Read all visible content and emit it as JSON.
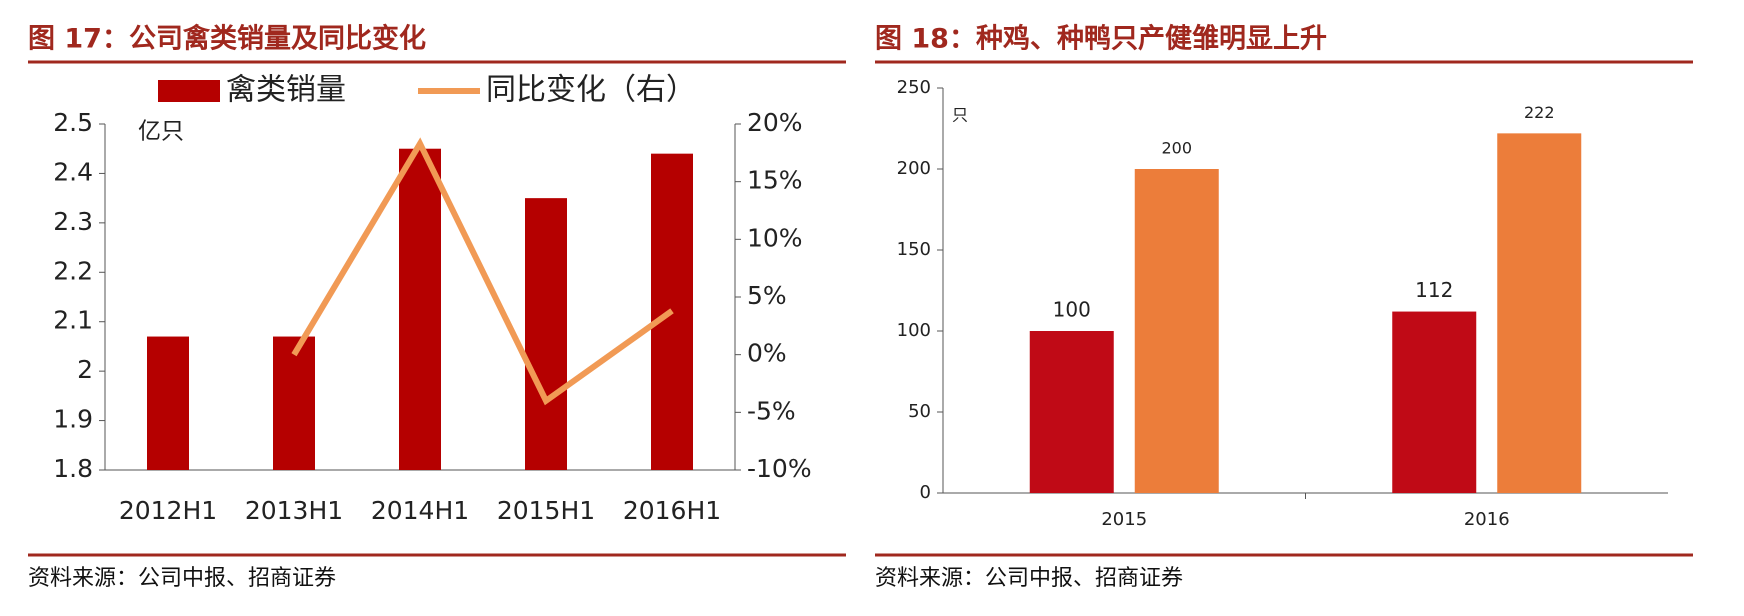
{
  "chart_data": [
    {
      "type": "bar",
      "title": "图 17：公司禽类销量及同比变化",
      "source": "资料来源：公司中报、招商证券",
      "y_unit": "亿只",
      "categories": [
        "2012H1",
        "2013H1",
        "2014H1",
        "2015H1",
        "2016H1"
      ],
      "series": [
        {
          "name": "禽类销量",
          "color": "#b50000",
          "values": [
            2.07,
            2.07,
            2.45,
            2.35,
            2.44
          ]
        },
        {
          "name": "同比变化（右）",
          "color": "#f19a55",
          "type": "line",
          "axis": "y2",
          "values": [
            null,
            0,
            18.3,
            -4,
            3.8
          ]
        }
      ],
      "ylim": [
        1.8,
        2.5
      ],
      "yticks": [
        1.8,
        1.9,
        2,
        2.1,
        2.2,
        2.3,
        2.4,
        2.5
      ],
      "y2lim": [
        -10,
        20
      ],
      "y2ticks": [
        {
          "value": -10,
          "label": "-10%"
        },
        {
          "value": -5,
          "label": "-5%"
        },
        {
          "value": 0,
          "label": "0%"
        },
        {
          "value": 5,
          "label": "5%"
        },
        {
          "value": 10,
          "label": "10%"
        },
        {
          "value": 15,
          "label": "15%"
        },
        {
          "value": 20,
          "label": "20%"
        }
      ],
      "legend": "top"
    },
    {
      "type": "bar",
      "title": "图 18：种鸡、种鸭只产健雏明显上升",
      "source": "资料来源：公司中报、招商证券",
      "y_unit": "只",
      "categories": [
        "2015",
        "2016"
      ],
      "series": [
        {
          "color": "#c00a16",
          "values": [
            100,
            112
          ]
        },
        {
          "color": "#ec7d3a",
          "values": [
            200,
            222
          ]
        }
      ],
      "ylim": [
        0,
        250
      ],
      "yticks": [
        0,
        50,
        100,
        150,
        200,
        250
      ],
      "data_labels": true
    }
  ]
}
